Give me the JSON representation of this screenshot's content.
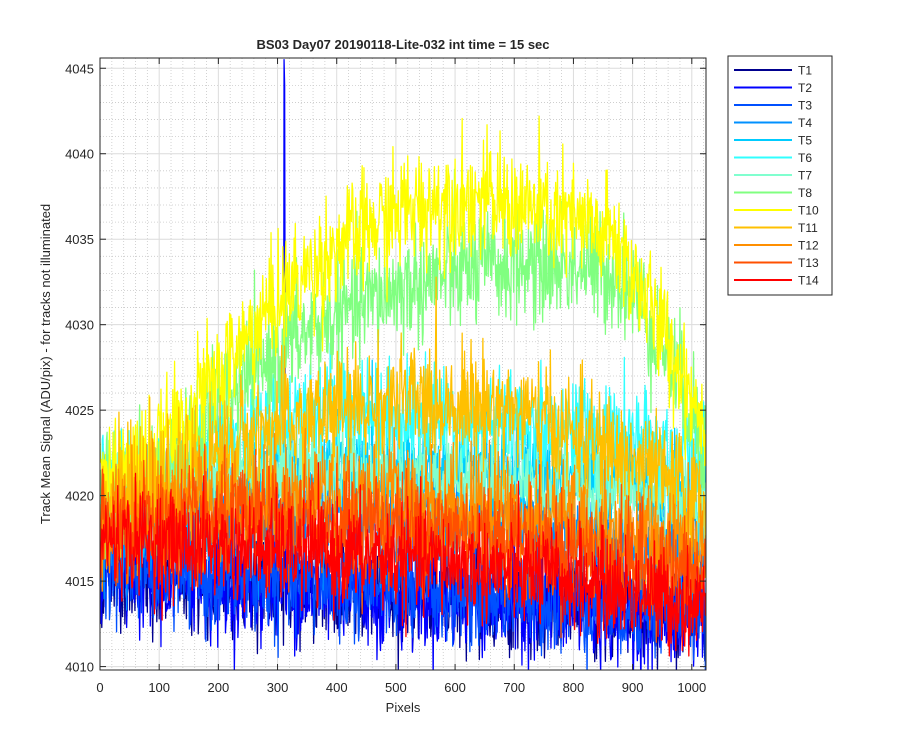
{
  "chart_data": {
    "type": "line",
    "title": "BS03 Day07 20190118-Lite-032 int time = 15 sec",
    "xlabel": "Pixels",
    "ylabel": "Track Mean Signal (ADU/pix) - for tracks not illuminated",
    "xlim": [
      0,
      1024
    ],
    "ylim": [
      4009.8,
      4045.6
    ],
    "xticks": [
      0,
      100,
      200,
      300,
      400,
      500,
      600,
      700,
      800,
      900,
      1000
    ],
    "xtick_labels": [
      "0",
      "100",
      "200",
      "300",
      "400",
      "500",
      "600",
      "700",
      "800",
      "900",
      "1000"
    ],
    "yticks": [
      4010,
      4015,
      4020,
      4025,
      4030,
      4035,
      4040,
      4045
    ],
    "ytick_labels": [
      "4010",
      "4015",
      "4020",
      "4025",
      "4030",
      "4035",
      "4040",
      "4045"
    ],
    "grid": true,
    "legend_position": "outside-top-right",
    "series": [
      {
        "name": "T1",
        "color": "#00008f",
        "noise": 1.5,
        "profile": [
          [
            0,
            4015.5
          ],
          [
            200,
            4015.0
          ],
          [
            400,
            4014.5
          ],
          [
            600,
            4014.0
          ],
          [
            800,
            4013.5
          ],
          [
            1024,
            4013.0
          ]
        ]
      },
      {
        "name": "T2",
        "color": "#0000ff",
        "noise": 1.5,
        "profile": [
          [
            0,
            4015.3
          ],
          [
            200,
            4014.8
          ],
          [
            300,
            4014.6
          ],
          [
            400,
            4014.4
          ],
          [
            600,
            4013.9
          ],
          [
            800,
            4013.3
          ],
          [
            1024,
            4012.8
          ]
        ],
        "spike": {
          "x": 312,
          "values": [
            4045.5,
            4044.0,
            4026.0
          ]
        }
      },
      {
        "name": "T3",
        "color": "#0050ff",
        "noise": 1.5,
        "profile": [
          [
            0,
            4015.8
          ],
          [
            200,
            4015.2
          ],
          [
            400,
            4014.8
          ],
          [
            600,
            4014.3
          ],
          [
            800,
            4013.8
          ],
          [
            1024,
            4013.3
          ]
        ]
      },
      {
        "name": "T4",
        "color": "#0090ff",
        "noise": 1.5,
        "profile": [
          [
            0,
            4017.5
          ],
          [
            200,
            4018.5
          ],
          [
            400,
            4018.8
          ],
          [
            600,
            4018.5
          ],
          [
            800,
            4017.8
          ],
          [
            1024,
            4016.5
          ]
        ]
      },
      {
        "name": "T5",
        "color": "#00ccff",
        "noise": 1.5,
        "profile": [
          [
            0,
            4019.0
          ],
          [
            200,
            4020.5
          ],
          [
            400,
            4021.5
          ],
          [
            600,
            4021.5
          ],
          [
            800,
            4021.0
          ],
          [
            1024,
            4020.0
          ]
        ]
      },
      {
        "name": "T6",
        "color": "#30ffff",
        "noise": 1.6,
        "profile": [
          [
            0,
            4020.0
          ],
          [
            100,
            4021.0
          ],
          [
            300,
            4024.5
          ],
          [
            400,
            4025.0
          ],
          [
            600,
            4024.5
          ],
          [
            800,
            4024.0
          ],
          [
            1024,
            4022.0
          ]
        ]
      },
      {
        "name": "T7",
        "color": "#80ffcf",
        "noise": 1.4,
        "profile": [
          [
            0,
            4019.5
          ],
          [
            200,
            4021.0
          ],
          [
            400,
            4021.5
          ],
          [
            600,
            4021.0
          ],
          [
            800,
            4020.5
          ],
          [
            1024,
            4019.5
          ]
        ]
      },
      {
        "name": "T8",
        "color": "#80ff80",
        "noise": 1.7,
        "profile": [
          [
            0,
            4020.0
          ],
          [
            100,
            4021.0
          ],
          [
            200,
            4025.0
          ],
          [
            300,
            4028.5
          ],
          [
            400,
            4030.5
          ],
          [
            500,
            4032.0
          ],
          [
            600,
            4033.0
          ],
          [
            700,
            4033.5
          ],
          [
            800,
            4033.5
          ],
          [
            880,
            4033.0
          ],
          [
            950,
            4029.0
          ],
          [
            1000,
            4025.0
          ],
          [
            1024,
            4023.0
          ]
        ]
      },
      {
        "name": "T10",
        "color": "#ffff00",
        "noise": 1.7,
        "profile": [
          [
            0,
            4021.0
          ],
          [
            100,
            4022.5
          ],
          [
            200,
            4027.0
          ],
          [
            300,
            4031.5
          ],
          [
            400,
            4034.5
          ],
          [
            500,
            4036.5
          ],
          [
            600,
            4037.5
          ],
          [
            700,
            4037.0
          ],
          [
            800,
            4036.0
          ],
          [
            870,
            4035.0
          ],
          [
            930,
            4031.0
          ],
          [
            1000,
            4026.0
          ],
          [
            1024,
            4024.0
          ]
        ]
      },
      {
        "name": "T11",
        "color": "#ffc000",
        "noise": 1.7,
        "profile": [
          [
            0,
            4019.5
          ],
          [
            100,
            4020.5
          ],
          [
            200,
            4022.5
          ],
          [
            300,
            4024.0
          ],
          [
            400,
            4025.0
          ],
          [
            500,
            4025.5
          ],
          [
            600,
            4025.5
          ],
          [
            700,
            4025.0
          ],
          [
            800,
            4023.5
          ],
          [
            900,
            4022.0
          ],
          [
            1024,
            4019.5
          ]
        ]
      },
      {
        "name": "T12",
        "color": "#ff8f00",
        "noise": 1.7,
        "profile": [
          [
            0,
            4018.5
          ],
          [
            200,
            4019.5
          ],
          [
            400,
            4020.0
          ],
          [
            600,
            4019.5
          ],
          [
            800,
            4018.5
          ],
          [
            1024,
            4016.5
          ]
        ]
      },
      {
        "name": "T13",
        "color": "#ff5000",
        "noise": 1.6,
        "profile": [
          [
            0,
            4018.0
          ],
          [
            200,
            4018.5
          ],
          [
            400,
            4018.5
          ],
          [
            600,
            4018.0
          ],
          [
            800,
            4017.0
          ],
          [
            1024,
            4015.0
          ]
        ]
      },
      {
        "name": "T14",
        "color": "#ff0000",
        "noise": 1.5,
        "profile": [
          [
            0,
            4017.5
          ],
          [
            200,
            4017.0
          ],
          [
            400,
            4016.5
          ],
          [
            600,
            4016.0
          ],
          [
            800,
            4015.0
          ],
          [
            1024,
            4013.5
          ]
        ]
      }
    ]
  }
}
